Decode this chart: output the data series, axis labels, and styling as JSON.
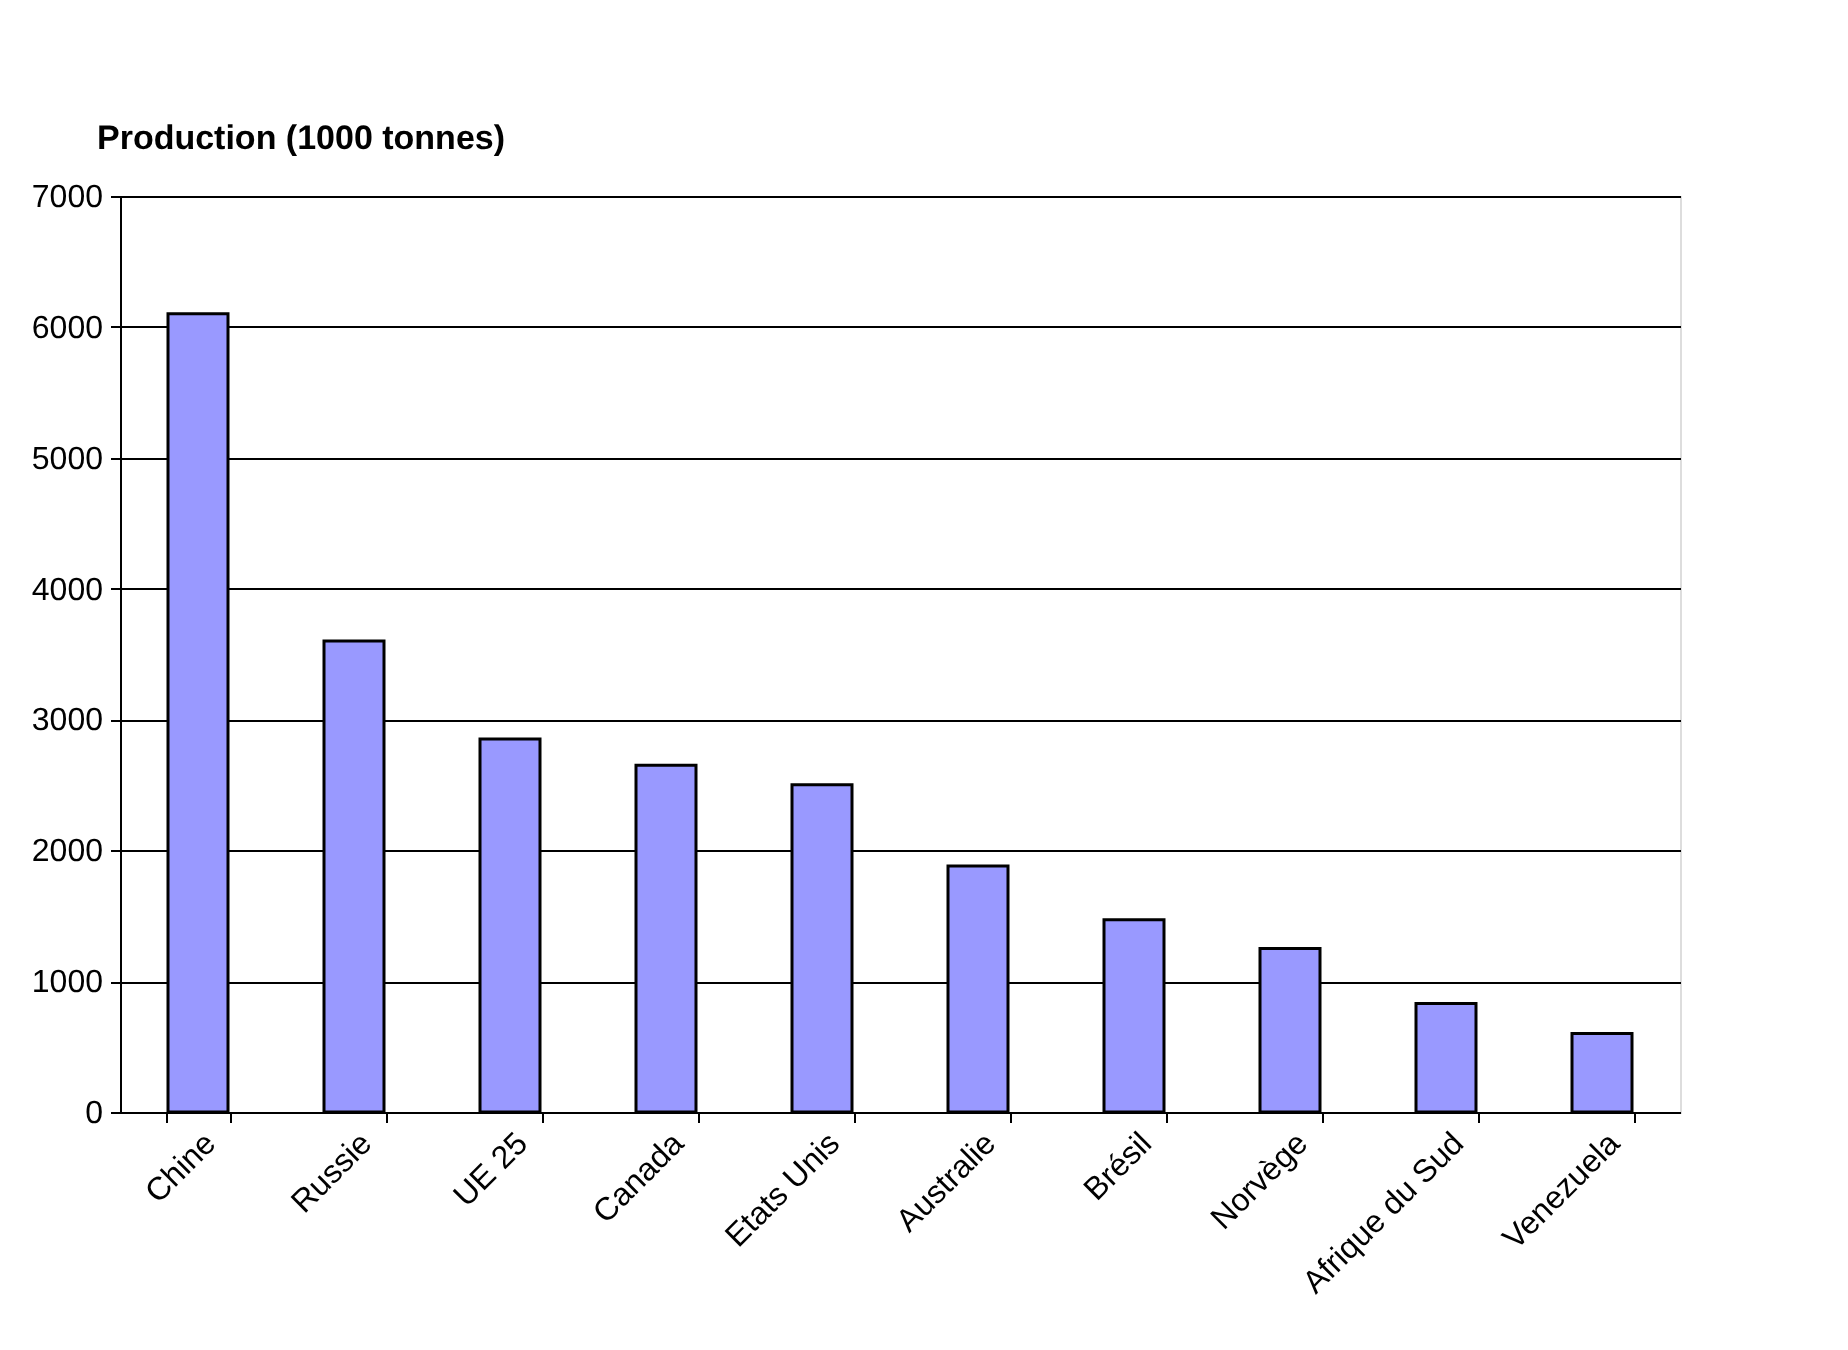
{
  "chart_data": {
    "type": "bar",
    "ylabel": "Production (1000 tonnes)",
    "categories": [
      "Chine",
      "Russie",
      "UE 25",
      "Canada",
      "Etats Unis",
      "Australie",
      "Brésil",
      "Norvège",
      "Afrique du Sud",
      "Venezuela"
    ],
    "values": [
      6100,
      3600,
      2850,
      2650,
      2500,
      1880,
      1470,
      1250,
      830,
      600
    ],
    "color": "#9999ff",
    "ylim": [
      0,
      7000
    ],
    "yticks": [
      0,
      1000,
      2000,
      3000,
      4000,
      5000,
      6000,
      7000
    ],
    "grid": "y"
  }
}
